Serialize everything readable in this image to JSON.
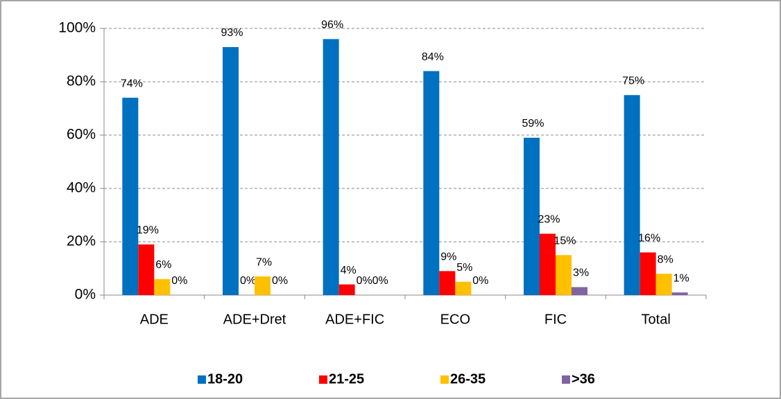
{
  "chart_data": {
    "type": "bar",
    "categories": [
      "ADE",
      "ADE+Dret",
      "ADE+FIC",
      "ECO",
      "FIC",
      "Total"
    ],
    "series": [
      {
        "name": "18-20",
        "color": "#0070c0",
        "values": [
          74,
          93,
          96,
          84,
          59,
          75
        ],
        "value_labels": [
          "74%",
          "93%",
          "96%",
          "84%",
          "59%",
          "75%"
        ]
      },
      {
        "name": "21-25",
        "color": "#ff0000",
        "values": [
          19,
          0,
          4,
          9,
          23,
          16
        ],
        "value_labels": [
          "19%",
          "0%",
          "4%",
          "9%",
          "23%",
          "16%"
        ]
      },
      {
        "name": "26-35",
        "color": "#ffc000",
        "values": [
          6,
          7,
          0,
          5,
          15,
          8
        ],
        "value_labels": [
          "6%",
          "7%",
          "0%",
          "5%",
          "15%",
          "8%"
        ]
      },
      {
        "name": ">36",
        "color": "#8064a2",
        "values": [
          0,
          0,
          0,
          0,
          3,
          1
        ],
        "value_labels": [
          "0%",
          "0%",
          "0%",
          "0%",
          "3%",
          "1%"
        ]
      }
    ],
    "ylim": [
      0,
      100
    ],
    "yticks": [
      {
        "value": 0,
        "label": "0%"
      },
      {
        "value": 20,
        "label": "20%"
      },
      {
        "value": 40,
        "label": "40%"
      },
      {
        "value": 60,
        "label": "60%"
      },
      {
        "value": 80,
        "label": "80%"
      },
      {
        "value": 100,
        "label": "100%"
      }
    ],
    "grid": true,
    "legend": "bottom"
  }
}
